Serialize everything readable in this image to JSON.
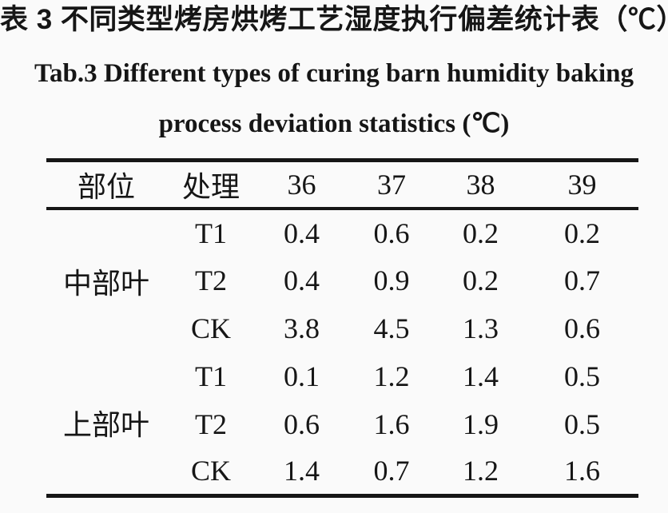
{
  "titles": {
    "chinese": "表 3 不同类型烤房烘烤工艺湿度执行偏差统计表（℃）",
    "english_line1": "Tab.3 Different types of curing barn humidity baking",
    "english_line2": "process deviation statistics (℃)"
  },
  "table": {
    "columns": [
      "部位",
      "处理",
      "36",
      "37",
      "38",
      "39"
    ],
    "groups": [
      {
        "position": "中部叶",
        "rows": [
          {
            "treatment": "T1",
            "values": [
              "0.4",
              "0.6",
              "0.2",
              "0.2"
            ]
          },
          {
            "treatment": "T2",
            "values": [
              "0.4",
              "0.9",
              "0.2",
              "0.7"
            ]
          },
          {
            "treatment": "CK",
            "values": [
              "3.8",
              "4.5",
              "1.3",
              "0.6"
            ]
          }
        ]
      },
      {
        "position": "上部叶",
        "rows": [
          {
            "treatment": "T1",
            "values": [
              "0.1",
              "1.2",
              "1.4",
              "0.5"
            ]
          },
          {
            "treatment": "T2",
            "values": [
              "0.6",
              "1.6",
              "1.9",
              "0.5"
            ]
          },
          {
            "treatment": "CK",
            "values": [
              "1.4",
              "0.7",
              "1.2",
              "1.6"
            ]
          }
        ]
      }
    ]
  },
  "colors": {
    "background": "#fafafa",
    "text": "#161616",
    "rule": "#161616"
  }
}
